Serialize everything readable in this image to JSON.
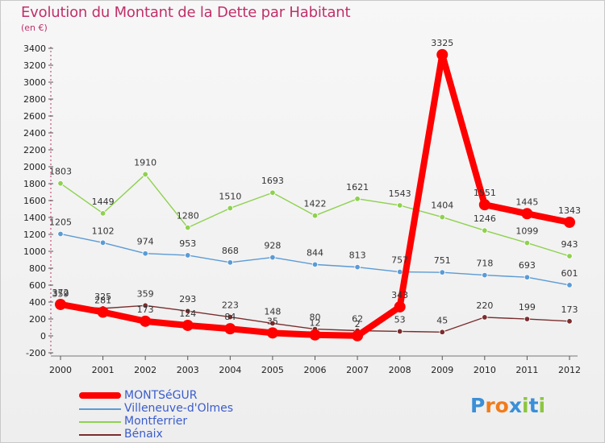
{
  "title": "Evolution du Montant de la Dette par Habitant",
  "subtitle": "(en €)",
  "chart_data": {
    "type": "line",
    "title": "Evolution du Montant de la Dette par Habitant",
    "subtitle": "(en €)",
    "x": [
      "2000",
      "2001",
      "2002",
      "2003",
      "2004",
      "2005",
      "2006",
      "2007",
      "2008",
      "2009",
      "2010",
      "2011",
      "2012"
    ],
    "ylim": [
      -200,
      3400
    ],
    "yticks": [
      -200,
      0,
      200,
      400,
      600,
      800,
      1000,
      1200,
      1400,
      1600,
      1800,
      2000,
      2200,
      2400,
      2600,
      2800,
      3000,
      3200,
      3400
    ],
    "grid": false,
    "legend_position": "bottom-left",
    "series": [
      {
        "name": "MONTSéGUR",
        "color": "#ff0000",
        "values": [
          372,
          281,
          173,
          124,
          84,
          35,
          12,
          2,
          343,
          3325,
          1551,
          1445,
          1343
        ],
        "labels": [
          "372",
          "281",
          "173",
          "124",
          "84",
          "35",
          "12",
          "2",
          "343",
          "3325",
          "1551",
          "1445",
          "1343"
        ]
      },
      {
        "name": "Villeneuve-d'Olmes",
        "color": "#5b9bd5",
        "values": [
          1205,
          1102,
          974,
          953,
          868,
          928,
          844,
          813,
          757,
          751,
          718,
          693,
          601
        ],
        "labels": [
          "1205",
          "1102",
          "974",
          "953",
          "868",
          "928",
          "844",
          "813",
          "757",
          "751",
          "718",
          "693",
          "601"
        ]
      },
      {
        "name": "Montferrier",
        "color": "#8fd14f",
        "values": [
          1803,
          1449,
          1910,
          1280,
          1510,
          1693,
          1422,
          1621,
          1543,
          1404,
          1246,
          1099,
          943
        ],
        "labels": [
          "1803",
          "1449",
          "1910",
          "1280",
          "1510",
          "1693",
          "1422",
          "1621",
          "1543",
          "1404",
          "1246",
          "1099",
          "943"
        ]
      },
      {
        "name": "Bénaix",
        "color": "#7b2d2d",
        "values": [
          359,
          325,
          359,
          293,
          223,
          148,
          80,
          62,
          53,
          45,
          220,
          199,
          173
        ],
        "labels": [
          "359",
          "325",
          "359",
          "293",
          "223",
          "148",
          "80",
          "62",
          "53",
          "45",
          "220",
          "199",
          "173"
        ]
      }
    ]
  },
  "logo": {
    "text": "Proxiti",
    "letters": [
      "P",
      "r",
      "o",
      "x",
      "i",
      "t",
      "i"
    ],
    "colors": [
      "#3a8fd8",
      "#f07c1c",
      "#f07c1c",
      "#3a8fd8",
      "#8cc63f",
      "#3a8fd8",
      "#8cc63f"
    ]
  }
}
